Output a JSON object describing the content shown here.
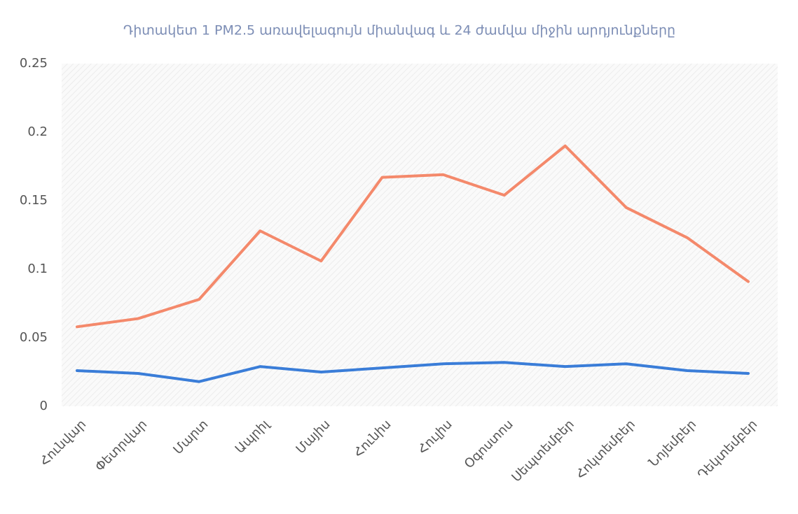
{
  "chart_data": {
    "type": "line",
    "title": "Դիտակետ 1 PM2.5 առավելագույն միանվագ և 24 ժամվա միջին արդյունքները",
    "categories": [
      "Հունվար",
      "Փետրվար",
      "Մարտ",
      "Ապրիլ",
      "Մայիս",
      "Հունիս",
      "Հուլիս",
      "Օգոստոս",
      "Սեպտեմբեր",
      "Հոկտեմբեր",
      "Նոյեմբեր",
      "Դեկտեմբեր"
    ],
    "series": [
      {
        "color": "#f4896b",
        "values": [
          0.058,
          0.064,
          0.078,
          0.128,
          0.106,
          0.167,
          0.169,
          0.154,
          0.19,
          0.145,
          0.123,
          0.091
        ]
      },
      {
        "color": "#3a7dd8",
        "values": [
          0.026,
          0.024,
          0.018,
          0.029,
          0.025,
          0.028,
          0.031,
          0.032,
          0.029,
          0.031,
          0.026,
          0.024
        ]
      }
    ],
    "ylim": [
      0,
      0.25
    ],
    "yticks": [
      0,
      0.05,
      0.1,
      0.15,
      0.2,
      0.25
    ],
    "grid": false
  }
}
